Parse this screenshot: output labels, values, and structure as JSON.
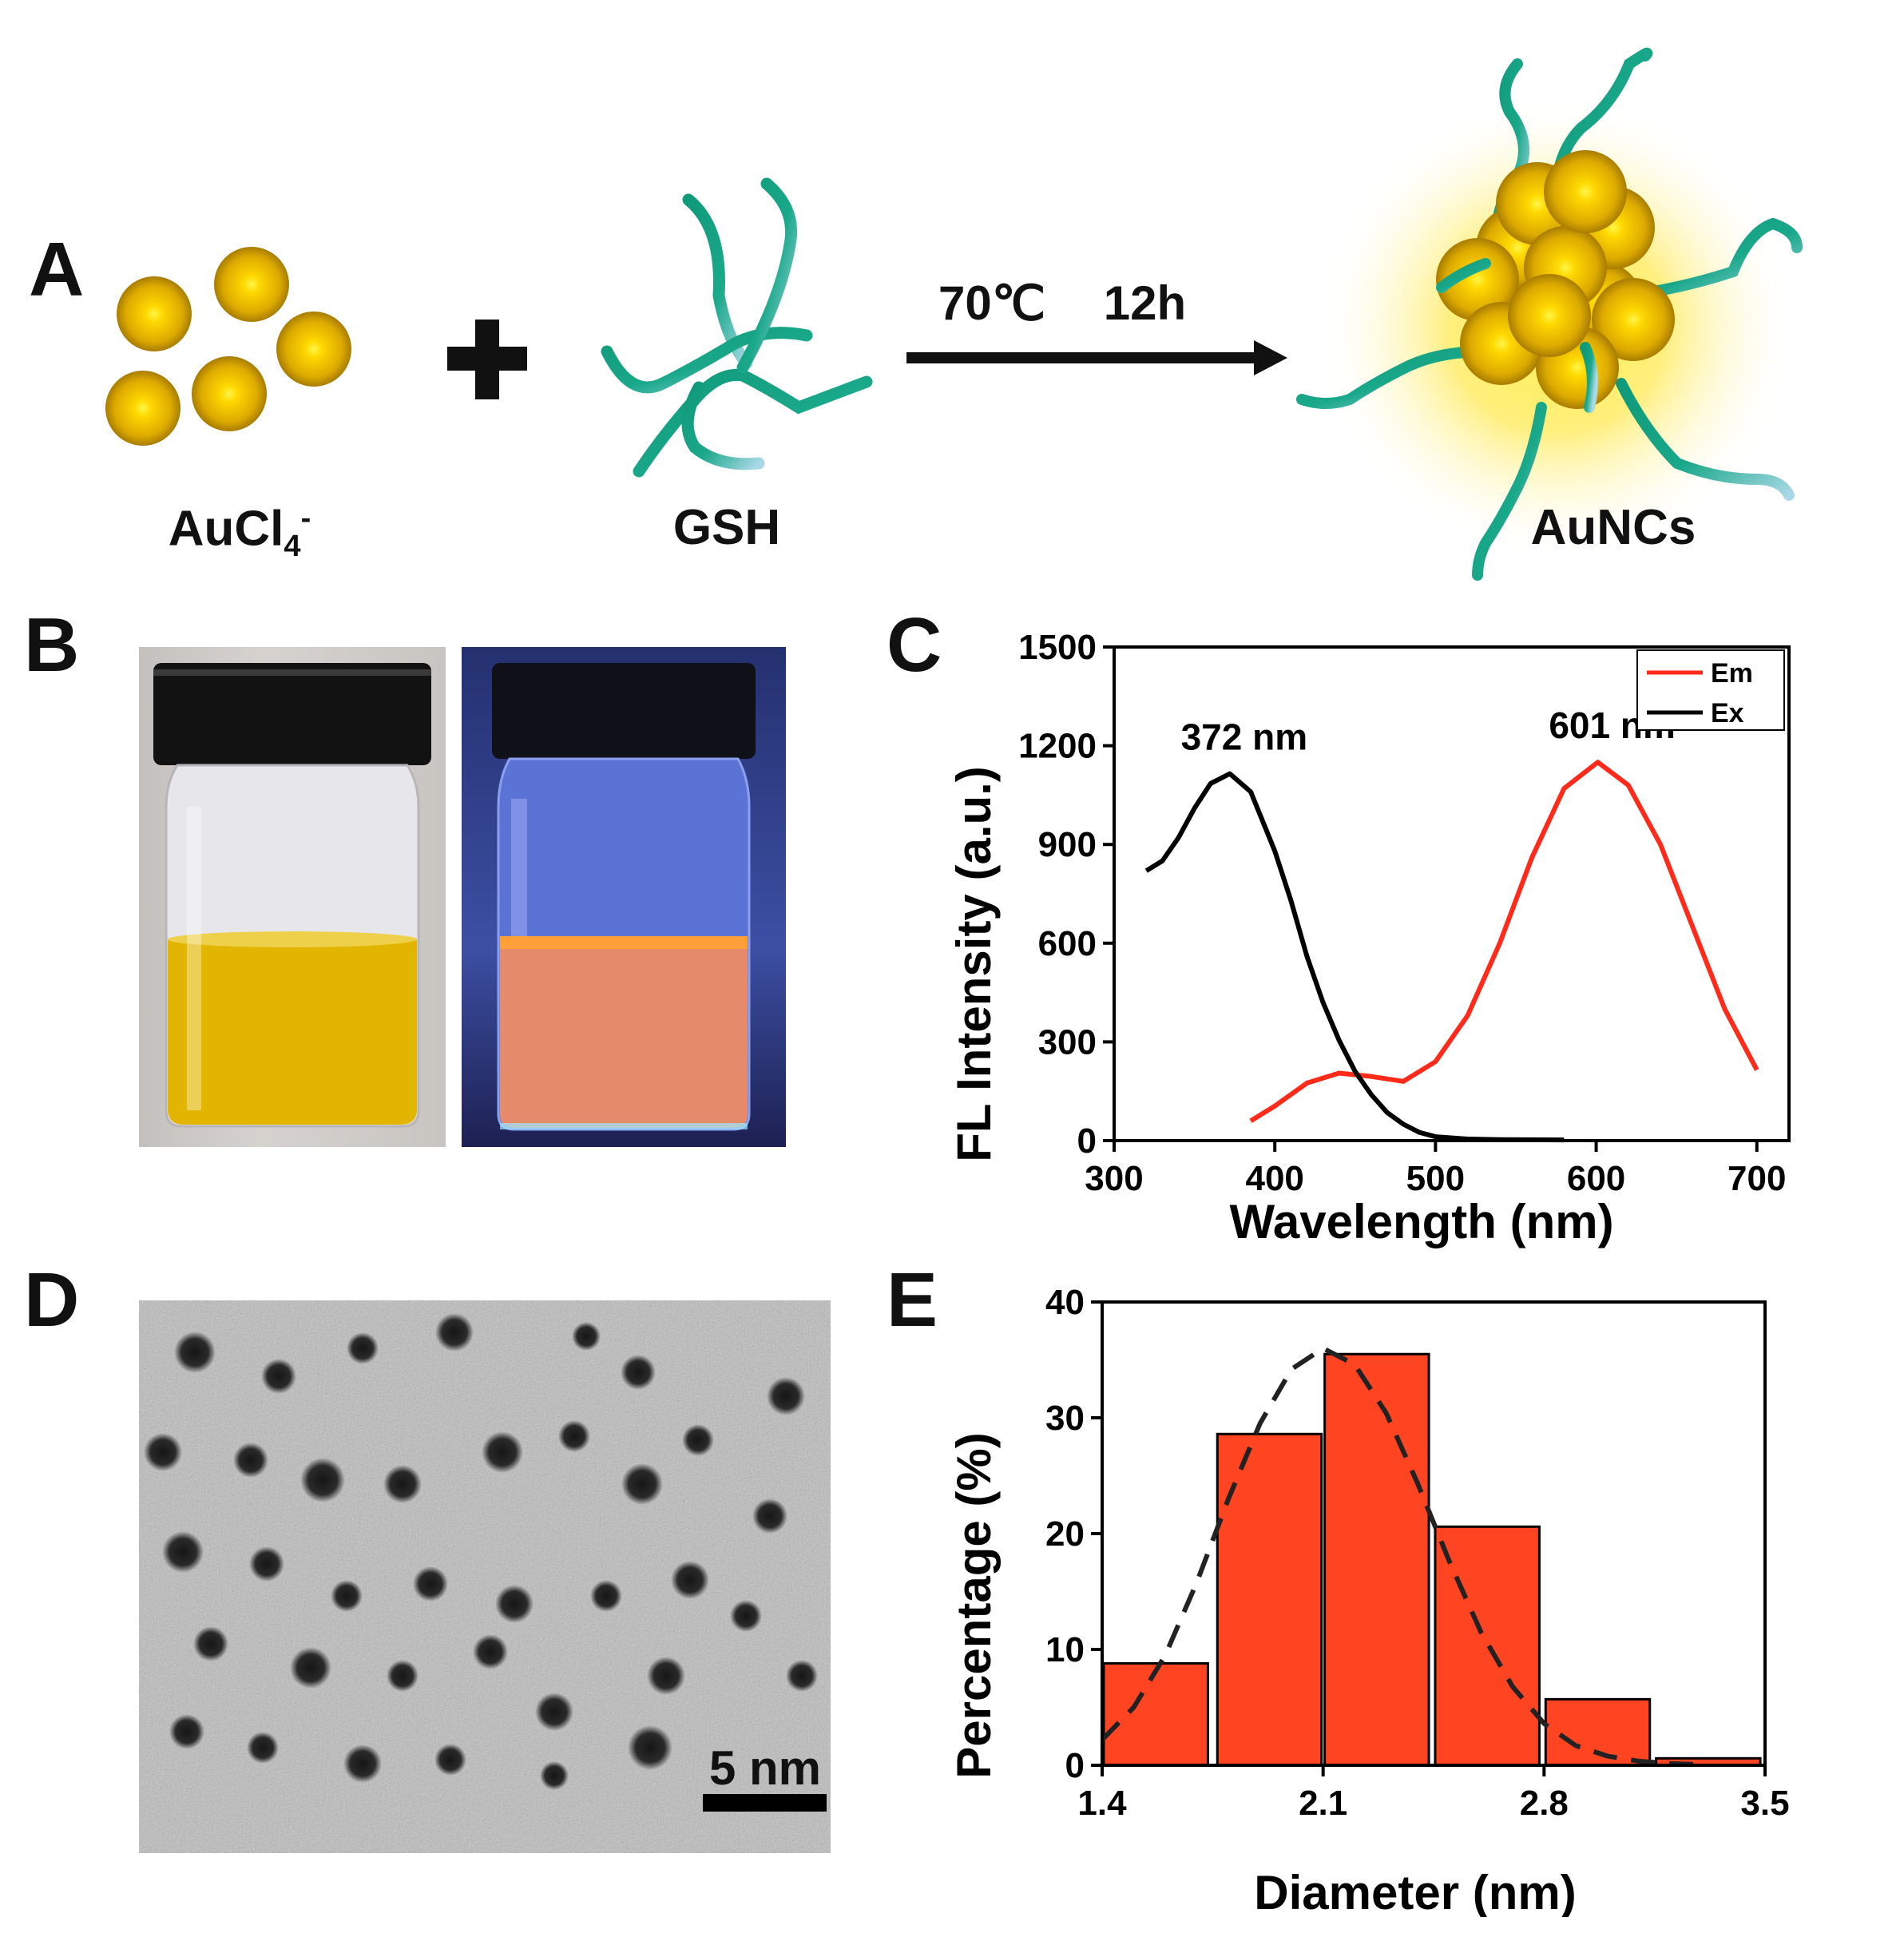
{
  "panel_letters": {
    "a": "A",
    "b": "B",
    "c": "C",
    "d": "D",
    "e": "E"
  },
  "scheme": {
    "reagent_1": "AuCl",
    "reagent_1_sub": "4",
    "reagent_1_sup": "-",
    "plus": "+",
    "reagent_2": "GSH",
    "condition_temp": "70℃",
    "condition_time": "12h",
    "product": "AuNCs",
    "colors": {
      "gold": "#e2b400",
      "ligand": "#169c80",
      "glow": "#ffe84d"
    }
  },
  "photos": {
    "vial_daylight": {
      "liquid_color": "#e3b800",
      "cap_color": "#111111"
    },
    "vial_uv": {
      "liquid_color": "#e58a6b",
      "background": "#2b3580"
    }
  },
  "tem": {
    "scale_bar_label": "5 nm"
  },
  "chart_data": [
    {
      "panel": "C",
      "type": "line",
      "xlabel": "Wavelength (nm)",
      "ylabel": "FL Intensity (a.u.)",
      "xlim": [
        300,
        720
      ],
      "ylim": [
        0,
        1500
      ],
      "xticks": [
        300,
        400,
        500,
        600,
        700
      ],
      "yticks": [
        0,
        300,
        600,
        900,
        1200,
        1500
      ],
      "legend_position": "top-right",
      "series": [
        {
          "name": "Em",
          "color": "#ff2a1a",
          "x": [
            385,
            400,
            420,
            440,
            460,
            480,
            500,
            520,
            540,
            560,
            580,
            601,
            620,
            640,
            660,
            680,
            700
          ],
          "y": [
            60,
            105,
            175,
            205,
            195,
            180,
            240,
            380,
            600,
            860,
            1070,
            1150,
            1080,
            900,
            650,
            400,
            215
          ]
        },
        {
          "name": "Ex",
          "color": "#000000",
          "x": [
            320,
            330,
            340,
            350,
            360,
            372,
            385,
            400,
            410,
            420,
            430,
            440,
            450,
            460,
            470,
            480,
            490,
            500,
            520,
            540,
            580
          ],
          "y": [
            820,
            850,
            920,
            1010,
            1085,
            1115,
            1060,
            880,
            730,
            560,
            420,
            305,
            210,
            140,
            85,
            50,
            25,
            12,
            5,
            3,
            2
          ]
        }
      ],
      "annotations": [
        {
          "text": "372 nm",
          "x": 372,
          "y": 1115
        },
        {
          "text": "601 nm",
          "x": 601,
          "y": 1150
        }
      ]
    },
    {
      "panel": "E",
      "type": "bar",
      "xlabel": "Diameter (nm)",
      "ylabel": "Percentage (%)",
      "xlim": [
        1.4,
        3.5
      ],
      "ylim": [
        0,
        40
      ],
      "xticks": [
        1.4,
        2.1,
        2.8,
        3.5
      ],
      "yticks": [
        0,
        10,
        20,
        30,
        40
      ],
      "bar_color": "#ff4422",
      "bar_width": 0.33,
      "bars": [
        {
          "x": 1.57,
          "value": 8.8
        },
        {
          "x": 1.93,
          "value": 28.6
        },
        {
          "x": 2.27,
          "value": 35.5
        },
        {
          "x": 2.62,
          "value": 20.6
        },
        {
          "x": 2.97,
          "value": 5.7
        },
        {
          "x": 3.32,
          "value": 0.6
        }
      ],
      "fit_curve": {
        "style": "dashed",
        "x": [
          1.4,
          1.5,
          1.6,
          1.7,
          1.8,
          1.9,
          2.0,
          2.1,
          2.2,
          2.3,
          2.4,
          2.5,
          2.6,
          2.7,
          2.8,
          2.9,
          3.0,
          3.1,
          3.2,
          3.3
        ],
        "y": [
          2.2,
          5.0,
          9.5,
          15.8,
          23.0,
          29.5,
          34.2,
          36.0,
          34.6,
          30.4,
          24.3,
          17.6,
          11.5,
          6.8,
          3.6,
          1.7,
          0.8,
          0.35,
          0.15,
          0.05
        ]
      }
    }
  ]
}
